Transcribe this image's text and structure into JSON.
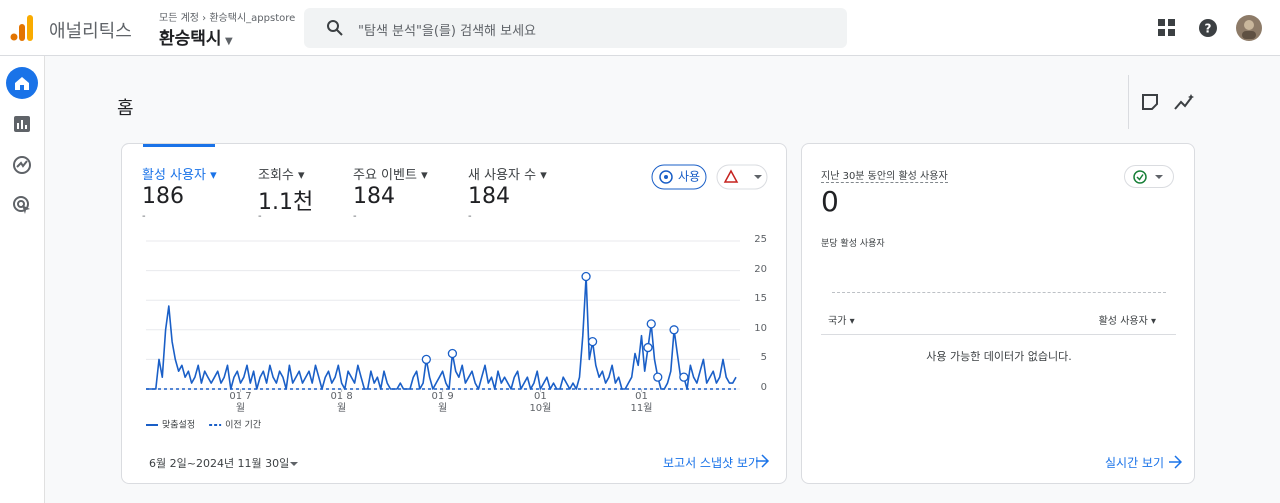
{
  "header": {
    "app": "애널리틱스",
    "breadcrumb": [
      "모든 계정",
      "환승택시_appstore"
    ],
    "property": "환승택시",
    "search_placeholder": "\"탐색 분석\"을(를) 검색해 보세요"
  },
  "page_title": "홈",
  "metrics": [
    {
      "label": "활성 사용자",
      "value": 186,
      "change": "-"
    },
    {
      "label": "조회수",
      "value": "1.1천",
      "change": "-"
    },
    {
      "label": "주요 이벤트",
      "value": 184,
      "change": "-"
    },
    {
      "label": "새 사용자 수",
      "value": 184,
      "change": "-"
    }
  ],
  "badge": "사용",
  "chart_data": {
    "type": "line",
    "series": [
      {
        "name": "맞춤설정",
        "color": "#1a5fc7",
        "dash": false,
        "values": [
          0,
          0,
          0,
          0,
          5,
          2,
          10,
          14,
          8,
          5,
          3,
          4,
          2,
          3,
          1,
          2,
          4,
          1,
          3,
          2,
          1,
          2,
          3,
          1,
          2,
          4,
          0,
          2,
          3,
          1,
          2,
          4,
          1,
          3,
          0,
          2,
          3,
          1,
          4,
          2,
          1,
          3,
          2,
          0,
          4,
          1,
          2,
          3,
          1,
          2,
          3,
          1,
          4,
          2,
          0,
          2,
          3,
          1,
          2,
          4,
          1,
          0,
          3,
          2,
          1,
          4,
          2,
          0,
          0,
          3,
          1,
          2,
          0,
          3,
          1,
          0,
          0,
          0,
          1,
          0,
          0,
          0,
          2,
          3,
          0,
          1,
          5,
          2,
          0,
          1,
          2,
          3,
          1,
          0,
          6,
          3,
          2,
          4,
          1,
          2,
          3,
          1,
          0,
          2,
          4,
          1,
          2,
          0,
          3,
          1,
          2,
          1,
          0,
          2,
          3,
          0,
          1,
          2,
          0,
          1,
          3,
          0,
          1,
          2,
          0,
          1,
          0,
          0,
          2,
          1,
          0,
          1,
          0,
          2,
          9,
          19,
          5,
          8,
          4,
          2,
          3,
          1,
          2,
          4,
          1,
          2,
          0,
          0,
          1,
          2,
          6,
          4,
          9,
          3,
          7,
          11,
          5,
          2,
          0,
          0,
          1,
          3,
          10,
          6,
          2,
          2,
          0,
          4,
          2,
          1,
          3,
          5,
          1,
          2,
          3,
          1,
          2,
          5,
          2,
          1,
          1,
          2
        ]
      },
      {
        "name": "이전 기간",
        "color": "#1a5fc7",
        "dash": true,
        "values": [
          0,
          0,
          0,
          0,
          0,
          0,
          0,
          0,
          0,
          0,
          0,
          0,
          0,
          0,
          0,
          0,
          0,
          0,
          0,
          0,
          0,
          0,
          0,
          0,
          0,
          0,
          0,
          0,
          0,
          0,
          0,
          0,
          0,
          0,
          0,
          0,
          0,
          0,
          0,
          0,
          0,
          0,
          0,
          0,
          0,
          0,
          0,
          0,
          0,
          0,
          0,
          0,
          0,
          0,
          0,
          0,
          0,
          0,
          0,
          0,
          0,
          0,
          0,
          0,
          0,
          0,
          0,
          0,
          0,
          0,
          0,
          0,
          0,
          0,
          0,
          0,
          0,
          0,
          0,
          0,
          0,
          0,
          0,
          0,
          0,
          0,
          0,
          0,
          0,
          0,
          0,
          0,
          0,
          0,
          0,
          0,
          0,
          0,
          0,
          0,
          0,
          0,
          0,
          0,
          0,
          0,
          0,
          0,
          0,
          0,
          0,
          0,
          0,
          0,
          0,
          0,
          0,
          0,
          0,
          0,
          0,
          0,
          0,
          0,
          0,
          0,
          0,
          0,
          0,
          0,
          0,
          0,
          0,
          0,
          0,
          0,
          0,
          0,
          0,
          0,
          0,
          0,
          0,
          0,
          0,
          0,
          0,
          0,
          0,
          0,
          0,
          0,
          0,
          0,
          0,
          0,
          0,
          0,
          0,
          0,
          0,
          0,
          0,
          0,
          0,
          0,
          0,
          0,
          0,
          0,
          0,
          0,
          0,
          0,
          0,
          0,
          0,
          0,
          0,
          0,
          0,
          0
        ]
      }
    ],
    "anomalies": [
      86,
      94,
      135,
      137,
      154,
      155,
      157,
      162,
      165
    ],
    "xlim": [
      0,
      181
    ],
    "xticks": [
      {
        "value": 29,
        "label": "01 7월"
      },
      {
        "value": 60,
        "label": "01 8월"
      },
      {
        "value": 91,
        "label": "01 9월"
      },
      {
        "value": 121,
        "label": "01 10월"
      },
      {
        "value": 152,
        "label": "01 11월"
      }
    ],
    "ylim": [
      0,
      25
    ],
    "yticks": [
      0,
      5,
      10,
      15,
      20,
      25
    ],
    "grid": true
  },
  "date_range": "6월 2일~2024년 11월 30일",
  "snapshot_link": "보고서 스냅샷 보기",
  "realtime": {
    "title": "지난 30분 동안의 활성 사용자",
    "value": 0,
    "per_minute": "분당 활성 사용자",
    "col_country": "국가",
    "col_users": "활성 사용자",
    "empty": "사용 가능한 데이터가 없습니다.",
    "link": "실시간 보기"
  }
}
